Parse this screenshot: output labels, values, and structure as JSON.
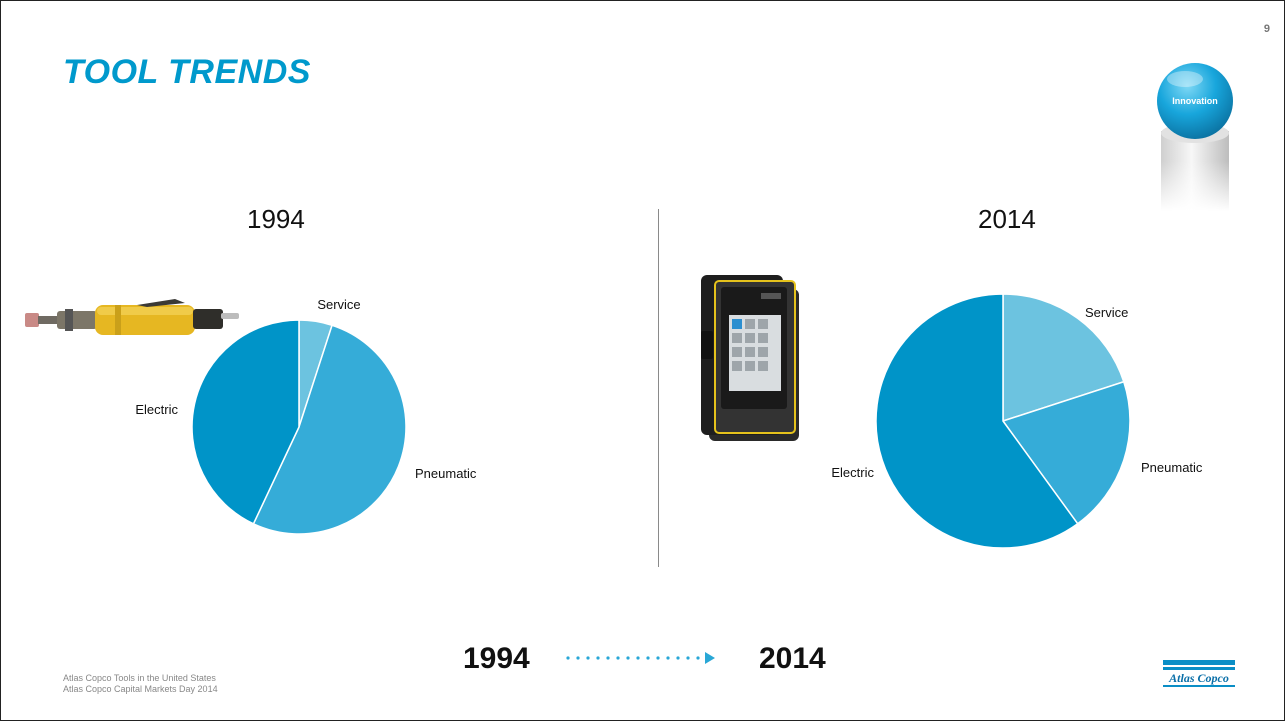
{
  "page_number": "9",
  "title": "TOOL TRENDS",
  "badge": {
    "label": "Innovation",
    "icon": "innovation-sphere-badge"
  },
  "footer": {
    "line1": "Atlas Copco Tools in the United States",
    "line2": "Atlas Copco Capital Markets Day 2014"
  },
  "timeline": {
    "from": "1994",
    "to": "2014"
  },
  "logo": {
    "text": "Atlas Copco"
  },
  "images": {
    "left_tool": "pneumatic-grinder-photo",
    "right_tool": "power-focus-controller-photo"
  },
  "colors": {
    "accent": "#0099cc",
    "service": "#6cc3e0",
    "pneumatic": "#35acd8",
    "electric": "#0094c8"
  },
  "chart_data": [
    {
      "type": "pie",
      "title": "1994",
      "categories": [
        "Service",
        "Pneumatic",
        "Electric"
      ],
      "values": [
        5,
        52,
        43
      ]
    },
    {
      "type": "pie",
      "title": "2014",
      "categories": [
        "Service",
        "Pneumatic",
        "Electric"
      ],
      "values": [
        20,
        20,
        60
      ]
    }
  ]
}
